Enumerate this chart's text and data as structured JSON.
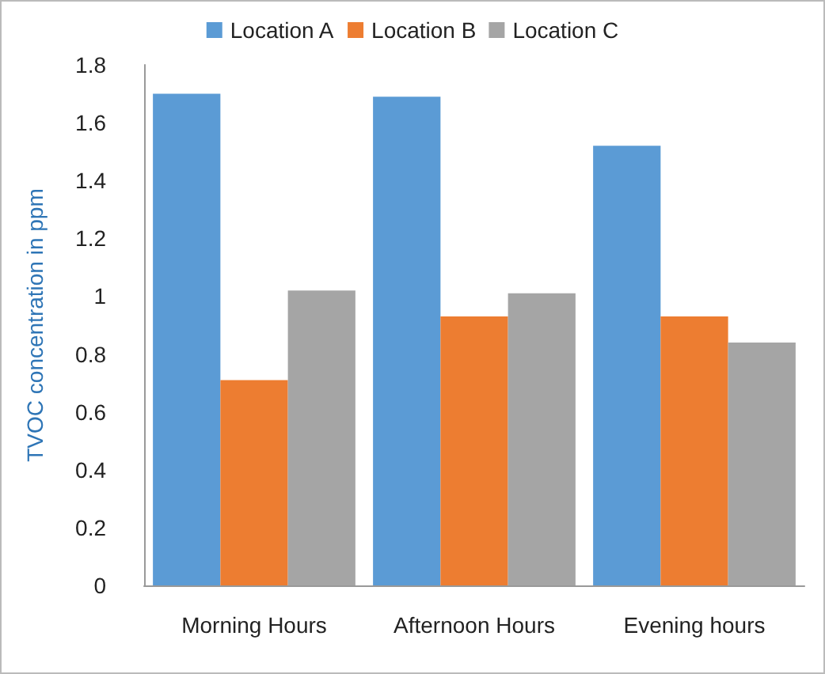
{
  "chart_data": {
    "type": "bar",
    "ylabel": "TVOC concentration in ppm",
    "categories": [
      "Morning Hours",
      "Afternoon Hours",
      "Evening hours"
    ],
    "series": [
      {
        "name": "Location A",
        "color": "#5b9bd5",
        "values": [
          1.7,
          1.69,
          1.52
        ]
      },
      {
        "name": "Location B",
        "color": "#ed7d31",
        "values": [
          0.71,
          0.93,
          0.93
        ]
      },
      {
        "name": "Location C",
        "color": "#a5a5a5",
        "values": [
          1.02,
          1.01,
          0.84
        ]
      }
    ],
    "ylim": [
      0,
      1.8
    ],
    "yticks": [
      0,
      0.2,
      0.4,
      0.6,
      0.8,
      1,
      1.2,
      1.4,
      1.6,
      1.8
    ],
    "grid": false,
    "legend": "top"
  }
}
